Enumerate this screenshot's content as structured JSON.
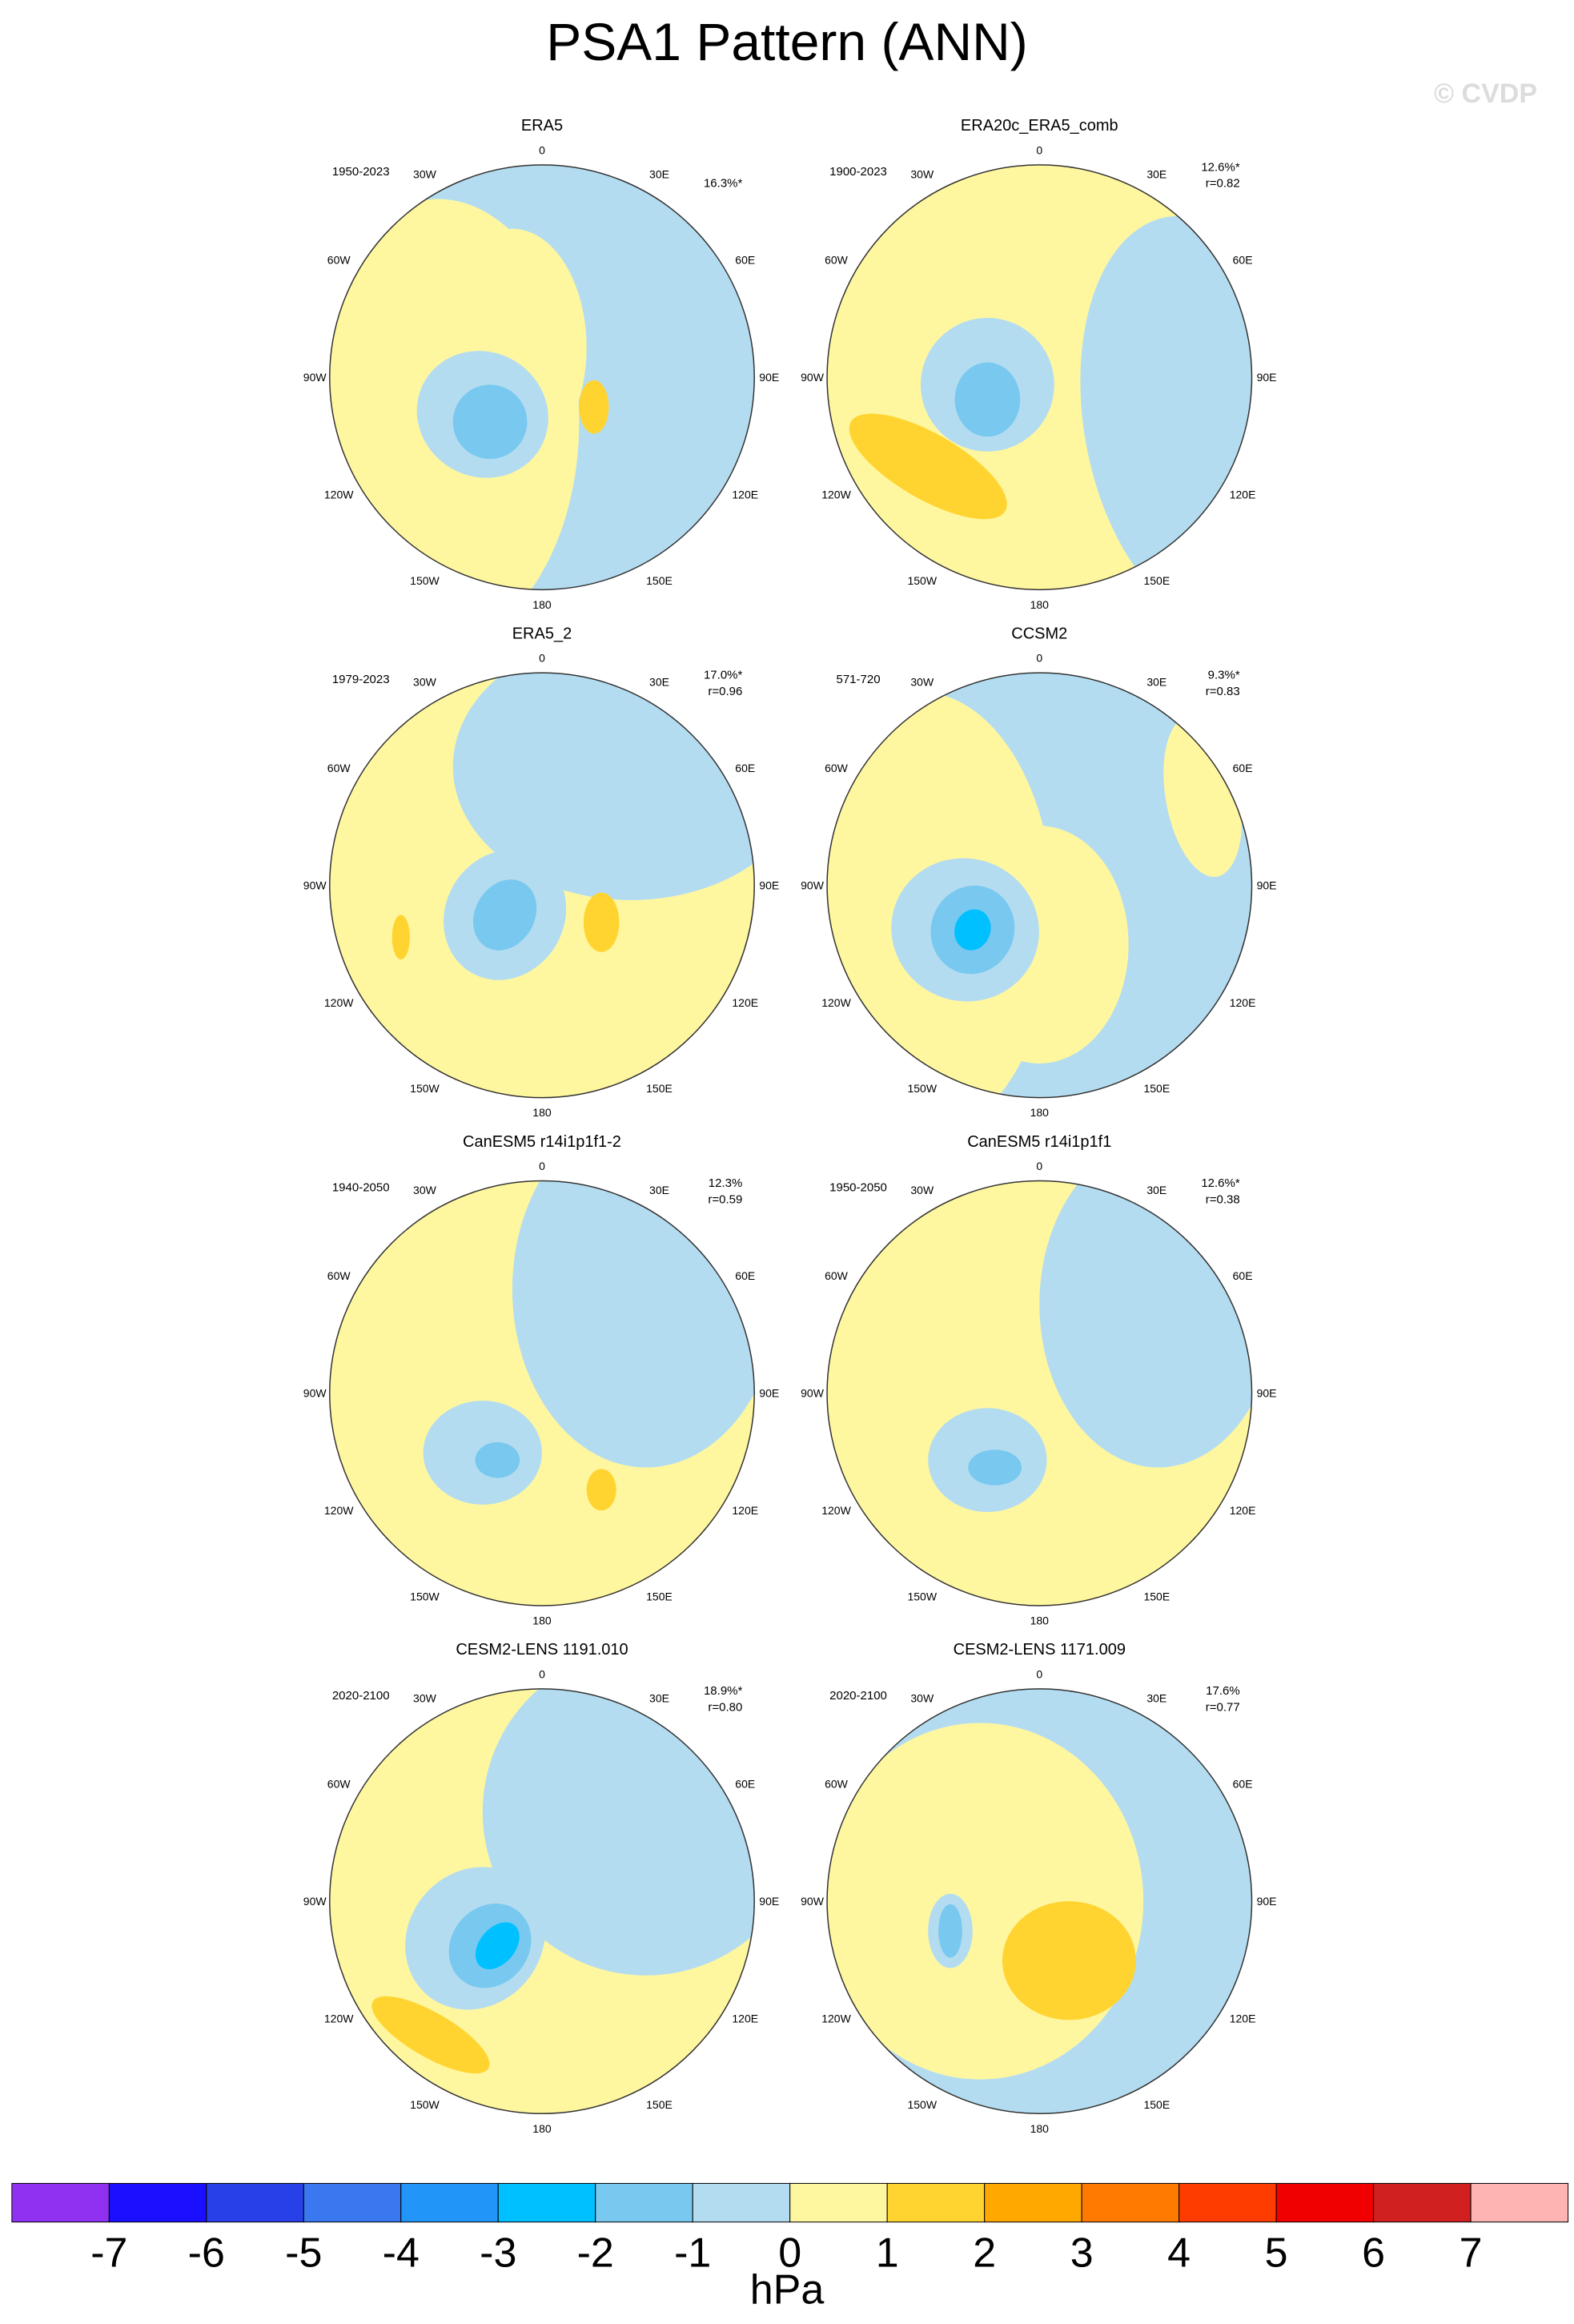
{
  "title": "PSA1 Pattern (ANN)",
  "watermark": "© CVDP",
  "longitude_labels": [
    "0",
    "30E",
    "60E",
    "90E",
    "120E",
    "150E",
    "180",
    "150W",
    "120W",
    "90W",
    "60W",
    "30W"
  ],
  "panels": [
    {
      "title": "ERA5",
      "period": "1950-2023",
      "percent": "16.3%*"
    },
    {
      "title": "ERA20c_ERA5_comb",
      "period": "1900-2023",
      "percent": "12.6%*",
      "r": "r=0.82"
    },
    {
      "title": "ERA5_2",
      "period": "1979-2023",
      "percent": "17.0%*",
      "r": "r=0.96"
    },
    {
      "title": "CCSM2",
      "period": "571-720",
      "percent": "9.3%*",
      "r": "r=0.83"
    },
    {
      "title": "CanESM5 r14i1p1f1-2",
      "period": "1940-2050",
      "percent": "12.3%",
      "r": "r=0.59"
    },
    {
      "title": "CanESM5 r14i1p1f1",
      "period": "1950-2050",
      "percent": "12.6%*",
      "r": "r=0.38"
    },
    {
      "title": "CESM2-LENS 1191.010",
      "period": "2020-2100",
      "percent": "18.9%*",
      "r": "r=0.80"
    },
    {
      "title": "CESM2-LENS 1171.009",
      "period": "2020-2100",
      "percent": "17.6%",
      "r": "r=0.77"
    }
  ],
  "colorbar": {
    "colors": [
      "#9030f0",
      "#1a10ff",
      "#2840e8",
      "#3a78f0",
      "#2196f8",
      "#00c0ff",
      "#78c8f0",
      "#b4dcf0",
      "#fff7a0",
      "#ffd430",
      "#ffa800",
      "#ff7a00",
      "#ff3c00",
      "#f00000",
      "#d02020",
      "#ffb4b4"
    ],
    "ticks": [
      -7,
      -6,
      -5,
      -4,
      -3,
      -2,
      -1,
      0,
      1,
      2,
      3,
      4,
      5,
      6,
      7
    ],
    "label": "hPa"
  }
}
